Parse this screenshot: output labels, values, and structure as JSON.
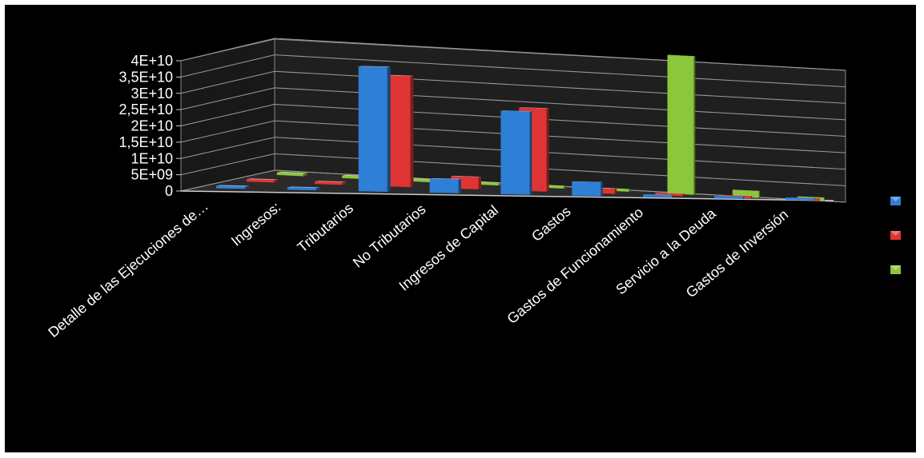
{
  "chart_data": {
    "type": "bar",
    "style": "3d-column",
    "title": "",
    "xlabel": "",
    "ylabel": "",
    "ylim": [
      0,
      40000000000
    ],
    "y_tick_labels": [
      "0",
      "5E+09",
      "1E+10",
      "1,5E+10",
      "2E+10",
      "2,5E+10",
      "3E+10",
      "3,5E+10",
      "4E+10"
    ],
    "categories": [
      "Detalle de las Ejecuciones de…",
      "Ingresos:",
      "Tributarios",
      "No Tributarios",
      "Ingresos de Capital",
      "Gastos",
      "Gastos de Funcionamiento",
      "Servicio a la Deuda",
      "Gastos de Inversión"
    ],
    "series": [
      {
        "values": [
          0,
          0,
          36000000000,
          4000000000,
          24000000000,
          4000000000,
          0,
          0,
          0
        ],
        "color": "#2e7fd6"
      },
      {
        "values": [
          0,
          500000000,
          32000000000,
          3500000000,
          24000000000,
          1500000000,
          0,
          0,
          0
        ],
        "color": "#e03434"
      },
      {
        "values": [
          0,
          500000000,
          0,
          0,
          0,
          0,
          40000000000,
          2000000000,
          1000000000
        ],
        "color": "#8cc63c"
      }
    ],
    "grid": true,
    "legend_position": "right"
  }
}
